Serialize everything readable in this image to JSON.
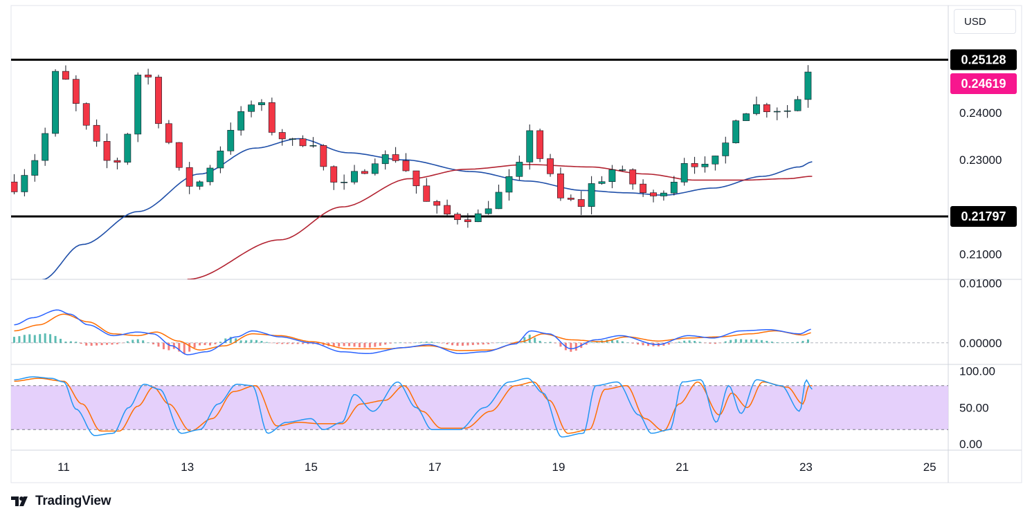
{
  "currency": {
    "label": "USD"
  },
  "brand": {
    "name": "TradingView"
  },
  "chart_data": [
    {
      "type": "candlestick",
      "panel": "price",
      "ylim": [
        0.2046,
        0.2628
      ],
      "price_axis_ticks": [
        "0.21000",
        "0.23000",
        "0.24000"
      ],
      "x_ticks": [
        {
          "label": "11",
          "day": 11
        },
        {
          "label": "13",
          "day": 13
        },
        {
          "label": "15",
          "day": 15
        },
        {
          "label": "17",
          "day": 17
        },
        {
          "label": "19",
          "day": 19
        },
        {
          "label": "21",
          "day": 21
        },
        {
          "label": "23",
          "day": 23
        },
        {
          "label": "25",
          "day": 25
        }
      ],
      "x_range_days": [
        10.15,
        25.3
      ],
      "price_path": [
        [
          10.2,
          0.2245
        ],
        [
          10.45,
          0.2285
        ],
        [
          10.7,
          0.2355
        ],
        [
          10.9,
          0.249
        ],
        [
          11.05,
          0.2465
        ],
        [
          11.2,
          0.2415
        ],
        [
          11.5,
          0.233
        ],
        [
          11.8,
          0.2285
        ],
        [
          12.05,
          0.236
        ],
        [
          12.25,
          0.2505
        ],
        [
          12.4,
          0.247
        ],
        [
          12.6,
          0.236
        ],
        [
          12.9,
          0.227
        ],
        [
          13.1,
          0.224
        ],
        [
          13.4,
          0.229
        ],
        [
          13.7,
          0.237
        ],
        [
          14.0,
          0.241
        ],
        [
          14.1,
          0.2435
        ],
        [
          14.35,
          0.2365
        ],
        [
          14.7,
          0.2335
        ],
        [
          15.0,
          0.2345
        ],
        [
          15.25,
          0.2275
        ],
        [
          15.45,
          0.2235
        ],
        [
          15.7,
          0.2265
        ],
        [
          16.05,
          0.2305
        ],
        [
          16.4,
          0.2305
        ],
        [
          16.7,
          0.2245
        ],
        [
          16.95,
          0.2195
        ],
        [
          17.3,
          0.218
        ],
        [
          17.7,
          0.218
        ],
        [
          18.0,
          0.2225
        ],
        [
          18.3,
          0.2265
        ],
        [
          18.55,
          0.237
        ],
        [
          18.8,
          0.227
        ],
        [
          19.05,
          0.2215
        ],
        [
          19.35,
          0.2205
        ],
        [
          19.6,
          0.2255
        ],
        [
          19.9,
          0.228
        ],
        [
          20.2,
          0.225
        ],
        [
          20.5,
          0.2215
        ],
        [
          20.75,
          0.2245
        ],
        [
          21.1,
          0.2305
        ],
        [
          21.35,
          0.228
        ],
        [
          21.6,
          0.23
        ],
        [
          21.85,
          0.2395
        ],
        [
          22.15,
          0.2415
        ],
        [
          22.5,
          0.241
        ],
        [
          22.8,
          0.2405
        ],
        [
          23.0,
          0.2505
        ],
        [
          23.1,
          0.24619
        ]
      ],
      "horizontal_levels": [
        {
          "value": 0.25128,
          "label": "0.25128",
          "color": "#000000"
        },
        {
          "value": 0.21797,
          "label": "0.21797",
          "color": "#000000"
        }
      ],
      "last_price": {
        "value": 0.24619,
        "label": "0.24619",
        "color": "#f7168e"
      },
      "moving_averages": [
        {
          "color": "#1e4ea8",
          "points": [
            [
              10.65,
              0.2045
            ],
            [
              11.3,
              0.212
            ],
            [
              12.2,
              0.219
            ],
            [
              13.2,
              0.227
            ],
            [
              14.1,
              0.2325
            ],
            [
              14.8,
              0.2345
            ],
            [
              15.6,
              0.2315
            ],
            [
              16.5,
              0.23
            ],
            [
              17.6,
              0.2275
            ],
            [
              18.5,
              0.2255
            ],
            [
              19.4,
              0.2235
            ],
            [
              20.1,
              0.223
            ],
            [
              20.7,
              0.2225
            ],
            [
              21.5,
              0.224
            ],
            [
              22.3,
              0.2265
            ],
            [
              22.9,
              0.2285
            ],
            [
              23.1,
              0.2296
            ]
          ]
        },
        {
          "color": "#b22230",
          "points": [
            [
              13.0,
              0.2046
            ],
            [
              14.5,
              0.213
            ],
            [
              15.5,
              0.22
            ],
            [
              16.6,
              0.226
            ],
            [
              17.5,
              0.228
            ],
            [
              18.5,
              0.229
            ],
            [
              19.5,
              0.2285
            ],
            [
              20.4,
              0.227
            ],
            [
              21.2,
              0.2257
            ],
            [
              22.0,
              0.2257
            ],
            [
              22.7,
              0.226
            ],
            [
              23.1,
              0.2265
            ]
          ]
        }
      ],
      "colors": {
        "up": "#089981",
        "down": "#f23645",
        "wick": "#131722"
      }
    },
    {
      "type": "macd",
      "panel": "macd",
      "ylim": [
        -0.0035,
        0.0105
      ],
      "axis_ticks": [
        "0.01000",
        "0.00000"
      ],
      "macd_color": "#2962ff",
      "signal_color": "#ff6d00",
      "hist_up_color": "#26a69a",
      "hist_down_color": "#ef5350",
      "macd": [
        [
          10.2,
          0.003
        ],
        [
          10.5,
          0.0042
        ],
        [
          10.9,
          0.0055
        ],
        [
          11.1,
          0.0048
        ],
        [
          11.4,
          0.003
        ],
        [
          11.8,
          0.0012
        ],
        [
          12.2,
          0.0018
        ],
        [
          12.45,
          0.0015
        ],
        [
          12.75,
          -0.0005
        ],
        [
          13.0,
          -0.002
        ],
        [
          13.3,
          -0.0015
        ],
        [
          13.8,
          0.001
        ],
        [
          14.05,
          0.002
        ],
        [
          14.5,
          0.001
        ],
        [
          15.0,
          0.0
        ],
        [
          15.5,
          -0.0015
        ],
        [
          15.9,
          -0.0018
        ],
        [
          16.5,
          -0.0008
        ],
        [
          16.9,
          -0.0003
        ],
        [
          17.4,
          -0.0018
        ],
        [
          17.8,
          -0.0015
        ],
        [
          18.3,
          -0.0002
        ],
        [
          18.55,
          0.002
        ],
        [
          18.85,
          0.0015
        ],
        [
          19.2,
          -0.001
        ],
        [
          19.6,
          0.0005
        ],
        [
          20.0,
          0.0012
        ],
        [
          20.6,
          -0.0003
        ],
        [
          21.1,
          0.0012
        ],
        [
          21.5,
          0.0008
        ],
        [
          21.95,
          0.002
        ],
        [
          22.4,
          0.0022
        ],
        [
          22.9,
          0.0015
        ],
        [
          23.1,
          0.0023
        ]
      ],
      "signal": [
        [
          10.2,
          0.002
        ],
        [
          10.6,
          0.003
        ],
        [
          11.0,
          0.0048
        ],
        [
          11.4,
          0.0035
        ],
        [
          11.8,
          0.0015
        ],
        [
          12.2,
          0.0012
        ],
        [
          12.5,
          0.0018
        ],
        [
          12.85,
          0.0003
        ],
        [
          13.2,
          -0.0012
        ],
        [
          13.6,
          -0.0005
        ],
        [
          14.05,
          0.0015
        ],
        [
          14.5,
          0.0012
        ],
        [
          15.0,
          0.0002
        ],
        [
          15.6,
          -0.001
        ],
        [
          16.2,
          -0.001
        ],
        [
          16.9,
          -0.0005
        ],
        [
          17.4,
          -0.0013
        ],
        [
          17.9,
          -0.0012
        ],
        [
          18.4,
          0.0002
        ],
        [
          18.75,
          0.0015
        ],
        [
          19.2,
          0.0005
        ],
        [
          19.7,
          0.0002
        ],
        [
          20.1,
          0.001
        ],
        [
          20.6,
          0.0003
        ],
        [
          21.1,
          0.0008
        ],
        [
          21.6,
          0.001
        ],
        [
          22.1,
          0.0015
        ],
        [
          22.5,
          0.002
        ],
        [
          22.95,
          0.0013
        ],
        [
          23.1,
          0.0017
        ]
      ]
    },
    {
      "type": "stochastic_rsi",
      "panel": "stoch",
      "ylim": [
        -8,
        108
      ],
      "axis_ticks": [
        "100.00",
        "50.00",
        "0.00"
      ],
      "upper_band": 80,
      "lower_band": 20,
      "band_fill": "#e1c8fa",
      "k_color": "#2196f3",
      "d_color": "#ff6d00",
      "k": [
        [
          10.2,
          88
        ],
        [
          10.5,
          92
        ],
        [
          10.8,
          90
        ],
        [
          11.0,
          85
        ],
        [
          11.2,
          48
        ],
        [
          11.5,
          12
        ],
        [
          11.8,
          15
        ],
        [
          12.05,
          50
        ],
        [
          12.3,
          82
        ],
        [
          12.55,
          75
        ],
        [
          12.9,
          15
        ],
        [
          13.2,
          20
        ],
        [
          13.5,
          55
        ],
        [
          13.8,
          82
        ],
        [
          14.05,
          80
        ],
        [
          14.3,
          15
        ],
        [
          14.6,
          30
        ],
        [
          15.0,
          35
        ],
        [
          15.2,
          20
        ],
        [
          15.5,
          30
        ],
        [
          15.7,
          68
        ],
        [
          16.0,
          45
        ],
        [
          16.4,
          85
        ],
        [
          16.7,
          50
        ],
        [
          16.95,
          20
        ],
        [
          17.4,
          20
        ],
        [
          17.8,
          50
        ],
        [
          18.2,
          85
        ],
        [
          18.5,
          90
        ],
        [
          18.75,
          70
        ],
        [
          19.05,
          10
        ],
        [
          19.4,
          15
        ],
        [
          19.6,
          80
        ],
        [
          19.95,
          85
        ],
        [
          20.3,
          40
        ],
        [
          20.5,
          15
        ],
        [
          20.8,
          20
        ],
        [
          21.0,
          85
        ],
        [
          21.3,
          88
        ],
        [
          21.55,
          30
        ],
        [
          21.75,
          80
        ],
        [
          21.95,
          42
        ],
        [
          22.2,
          88
        ],
        [
          22.6,
          80
        ],
        [
          22.9,
          45
        ],
        [
          23.0,
          88
        ],
        [
          23.1,
          75
        ]
      ],
      "d": [
        [
          10.2,
          86
        ],
        [
          10.6,
          90
        ],
        [
          11.0,
          86
        ],
        [
          11.3,
          55
        ],
        [
          11.6,
          18
        ],
        [
          11.9,
          18
        ],
        [
          12.2,
          52
        ],
        [
          12.45,
          78
        ],
        [
          12.7,
          55
        ],
        [
          13.05,
          18
        ],
        [
          13.4,
          35
        ],
        [
          13.75,
          72
        ],
        [
          14.1,
          80
        ],
        [
          14.45,
          25
        ],
        [
          14.8,
          30
        ],
        [
          15.15,
          28
        ],
        [
          15.5,
          28
        ],
        [
          15.8,
          55
        ],
        [
          16.2,
          60
        ],
        [
          16.5,
          80
        ],
        [
          16.8,
          45
        ],
        [
          17.1,
          22
        ],
        [
          17.5,
          22
        ],
        [
          17.9,
          45
        ],
        [
          18.3,
          80
        ],
        [
          18.6,
          85
        ],
        [
          18.85,
          60
        ],
        [
          19.15,
          15
        ],
        [
          19.5,
          20
        ],
        [
          19.75,
          75
        ],
        [
          20.1,
          80
        ],
        [
          20.4,
          35
        ],
        [
          20.7,
          18
        ],
        [
          20.95,
          55
        ],
        [
          21.25,
          85
        ],
        [
          21.6,
          40
        ],
        [
          21.8,
          70
        ],
        [
          22.05,
          50
        ],
        [
          22.3,
          85
        ],
        [
          22.7,
          78
        ],
        [
          22.95,
          55
        ],
        [
          23.05,
          80
        ],
        [
          23.1,
          80
        ]
      ]
    }
  ]
}
